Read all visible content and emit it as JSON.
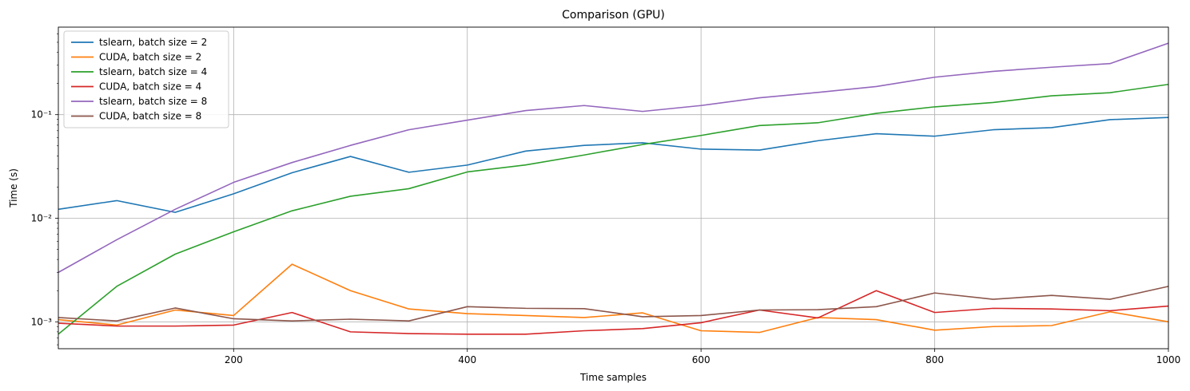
{
  "chart_data": {
    "type": "line",
    "title": "Comparison (GPU)",
    "xlabel": "Time samples",
    "ylabel": "Time (s)",
    "xscale": "linear",
    "yscale": "log",
    "xlim": [
      50,
      1000
    ],
    "ylim": [
      0.00055,
      0.7
    ],
    "grid": true,
    "legend_position": "upper-left",
    "x_ticks": [
      200,
      400,
      600,
      800,
      1000
    ],
    "x_tick_labels": [
      "200",
      "400",
      "600",
      "800",
      "1000"
    ],
    "y_ticks": [
      0.001,
      0.01,
      0.1
    ],
    "y_tick_labels": [
      "10⁻³",
      "10⁻²",
      "10⁻¹"
    ],
    "x": [
      50,
      100,
      150,
      200,
      250,
      300,
      350,
      400,
      450,
      500,
      550,
      600,
      650,
      700,
      750,
      800,
      850,
      900,
      950,
      1000
    ],
    "series": [
      {
        "name": "tslearn, batch size = 2",
        "color": "#1f77b4",
        "values": [
          0.0122,
          0.0148,
          0.0114,
          0.0172,
          0.0275,
          0.0395,
          0.0278,
          0.0326,
          0.0445,
          0.0505,
          0.0535,
          0.0465,
          0.0455,
          0.056,
          0.0655,
          0.062,
          0.0715,
          0.075,
          0.0895,
          0.094
        ]
      },
      {
        "name": "CUDA, batch size = 2",
        "color": "#ff7f0e",
        "values": [
          0.00105,
          0.00093,
          0.0013,
          0.00115,
          0.0036,
          0.002,
          0.00133,
          0.0012,
          0.00115,
          0.0011,
          0.00122,
          0.00082,
          0.00079,
          0.0011,
          0.00105,
          0.00083,
          0.0009,
          0.00092,
          0.00125,
          0.001
        ]
      },
      {
        "name": "tslearn, batch size = 4",
        "color": "#2ca02c",
        "values": [
          0.00076,
          0.0022,
          0.0045,
          0.0074,
          0.0118,
          0.0163,
          0.0193,
          0.028,
          0.0327,
          0.0408,
          0.0515,
          0.063,
          0.0785,
          0.0835,
          0.103,
          0.119,
          0.131,
          0.152,
          0.163,
          0.196
        ]
      },
      {
        "name": "CUDA, batch size = 4",
        "color": "#d62728",
        "values": [
          0.00097,
          0.00091,
          0.00091,
          0.00093,
          0.00123,
          0.0008,
          0.00077,
          0.00076,
          0.00076,
          0.00082,
          0.00086,
          0.00098,
          0.0013,
          0.00109,
          0.002,
          0.00123,
          0.00135,
          0.00133,
          0.00128,
          0.00142
        ]
      },
      {
        "name": "tslearn, batch size = 8",
        "color": "#9467bd",
        "values": [
          0.003,
          0.0062,
          0.0122,
          0.0222,
          0.0345,
          0.0505,
          0.0715,
          0.0885,
          0.1095,
          0.1225,
          0.1075,
          0.1225,
          0.1455,
          0.164,
          0.187,
          0.23,
          0.262,
          0.287,
          0.311,
          0.49
        ]
      },
      {
        "name": "CUDA, batch size = 8",
        "color": "#8c564b",
        "values": [
          0.0011,
          0.00102,
          0.00136,
          0.00107,
          0.00102,
          0.00106,
          0.00102,
          0.0014,
          0.00135,
          0.00134,
          0.00112,
          0.00115,
          0.0013,
          0.00131,
          0.0014,
          0.0019,
          0.00165,
          0.0018,
          0.00165,
          0.0022
        ]
      }
    ]
  }
}
